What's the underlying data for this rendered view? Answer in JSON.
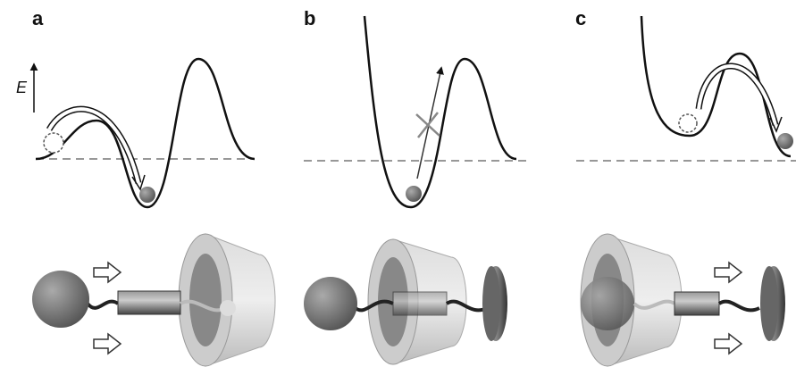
{
  "panels": [
    {
      "label": "a"
    },
    {
      "label": "b"
    },
    {
      "label": "c"
    }
  ],
  "axis": {
    "label": "E"
  }
}
